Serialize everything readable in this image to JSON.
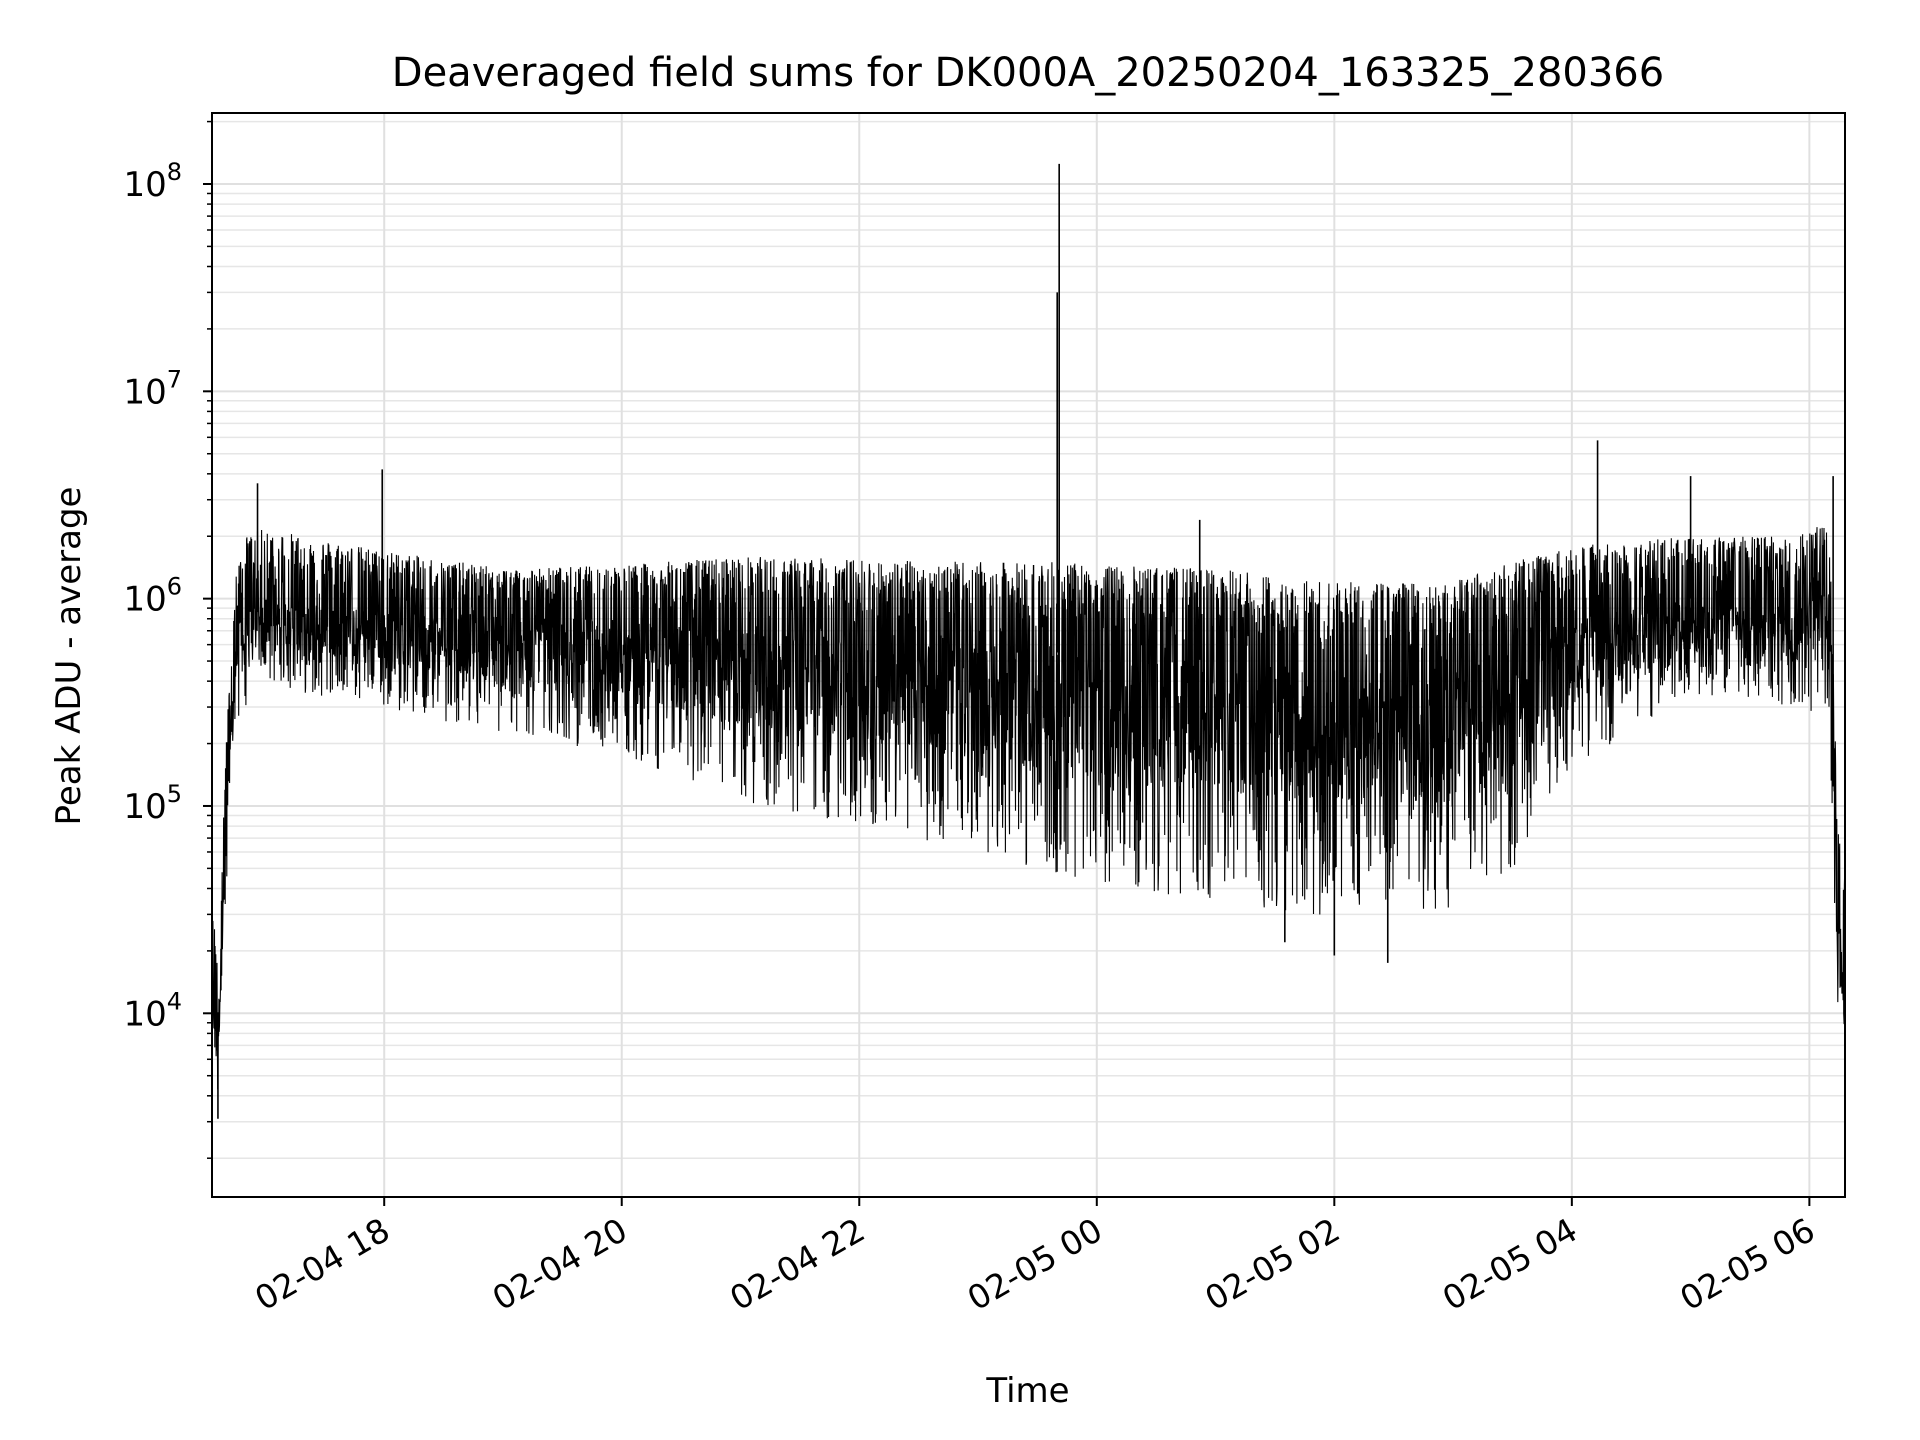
{
  "chart_data": {
    "type": "line",
    "title": "Deaveraged field sums for DK000A_20250204_163325_280366",
    "xlabel": "Time",
    "ylabel": "Peak ADU - average",
    "x_scale": "time",
    "y_scale": "log",
    "xlim": [
      "2025-02-04 16:33",
      "2025-02-05 06:18"
    ],
    "ylim": [
      1300,
      220000000
    ],
    "grid": true,
    "line_color": "#000000",
    "x_ticks": [
      {
        "value": "2025-02-04 18:00",
        "label": "02-04 18"
      },
      {
        "value": "2025-02-04 20:00",
        "label": "02-04 20"
      },
      {
        "value": "2025-02-04 22:00",
        "label": "02-04 22"
      },
      {
        "value": "2025-02-05 00:00",
        "label": "02-05 00"
      },
      {
        "value": "2025-02-05 02:00",
        "label": "02-05 02"
      },
      {
        "value": "2025-02-05 04:00",
        "label": "02-05 04"
      },
      {
        "value": "2025-02-05 06:00",
        "label": "02-05 06"
      }
    ],
    "y_ticks": [
      {
        "value": 10000,
        "base": "10",
        "exp": "4"
      },
      {
        "value": 100000,
        "base": "10",
        "exp": "5"
      },
      {
        "value": 1000000,
        "base": "10",
        "exp": "6"
      },
      {
        "value": 10000000,
        "base": "10",
        "exp": "7"
      },
      {
        "value": 100000000,
        "base": "10",
        "exp": "8"
      }
    ],
    "series_envelope": {
      "time": [
        "2025-02-04 16:33",
        "2025-02-04 16:36",
        "2025-02-04 16:40",
        "2025-02-04 16:45",
        "2025-02-04 16:50",
        "2025-02-04 17:00",
        "2025-02-04 17:20",
        "2025-02-04 18:00",
        "2025-02-04 19:00",
        "2025-02-04 20:00",
        "2025-02-04 21:00",
        "2025-02-04 22:00",
        "2025-02-04 23:00",
        "2025-02-04 23:40",
        "2025-02-05 00:00",
        "2025-02-05 01:00",
        "2025-02-05 02:00",
        "2025-02-05 03:00",
        "2025-02-05 03:30",
        "2025-02-05 04:00",
        "2025-02-05 05:00",
        "2025-02-05 05:55",
        "2025-02-05 06:10",
        "2025-02-05 06:14",
        "2025-02-05 06:18"
      ],
      "upper": [
        30000,
        25000,
        200000,
        1300000,
        2000000,
        2200000,
        2000000,
        1700000,
        1400000,
        1450000,
        1600000,
        1550000,
        1500000,
        1500000,
        1450000,
        1400000,
        1200000,
        1200000,
        1500000,
        1800000,
        2000000,
        2000000,
        2500000,
        100000,
        60000
      ],
      "lower": [
        6000,
        3200,
        30000,
        200000,
        300000,
        400000,
        350000,
        300000,
        220000,
        180000,
        100000,
        80000,
        60000,
        45000,
        40000,
        35000,
        28000,
        30000,
        50000,
        150000,
        350000,
        300000,
        250000,
        12000,
        6000
      ],
      "typical": [
        15000,
        10000,
        80000,
        700000,
        900000,
        1000000,
        950000,
        900000,
        850000,
        800000,
        700000,
        650000,
        600000,
        550000,
        550000,
        500000,
        450000,
        480000,
        600000,
        800000,
        1000000,
        900000,
        1200000,
        30000,
        15000
      ]
    },
    "spikes": [
      {
        "time": "2025-02-04 23:41",
        "value": 125000000
      },
      {
        "time": "2025-02-04 23:40",
        "value": 30000000
      },
      {
        "time": "2025-02-05 04:13",
        "value": 5800000
      },
      {
        "time": "2025-02-05 05:00",
        "value": 3900000
      },
      {
        "time": "2025-02-04 17:59",
        "value": 4200000
      },
      {
        "time": "2025-02-04 16:56",
        "value": 3600000
      },
      {
        "time": "2025-02-05 06:12",
        "value": 3900000
      },
      {
        "time": "2025-02-05 00:52",
        "value": 2400000
      },
      {
        "time": "2025-02-05 02:00",
        "value": 19000
      },
      {
        "time": "2025-02-05 02:27",
        "value": 17500
      },
      {
        "time": "2025-02-05 01:35",
        "value": 22000
      },
      {
        "time": "2025-02-04 16:36",
        "value": 3100
      }
    ]
  }
}
